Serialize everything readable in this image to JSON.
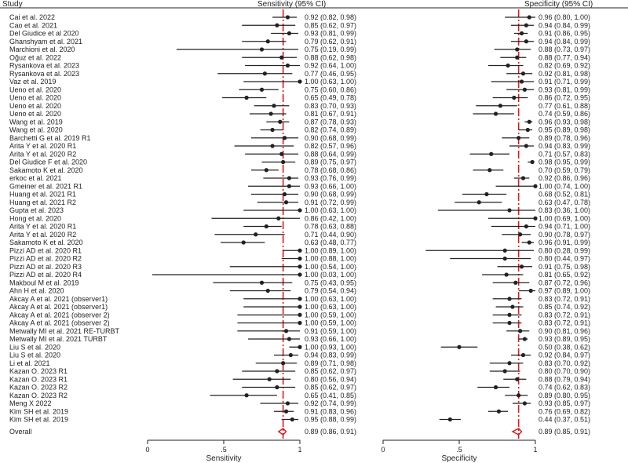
{
  "chart_data": {
    "type": "forest",
    "headers": {
      "study": "Study",
      "sensitivity_ci": "Sensitivity (95% CI)",
      "specificity_ci": "Specificity (95% CI)"
    },
    "axes": {
      "sensitivity": {
        "xlabel": "Sensitivity",
        "xlim": [
          0,
          1
        ],
        "ticks": [
          0,
          0.5,
          1
        ],
        "tick_labels": [
          "0",
          ".5",
          "1"
        ]
      },
      "specificity": {
        "xlabel": "Specificity",
        "xlim": [
          0,
          1
        ],
        "ticks": [
          0,
          0.5,
          1
        ],
        "tick_labels": [
          "0",
          ".5",
          "1"
        ]
      }
    },
    "pooled_line_color": "#dd1b1b",
    "marker_color": "#222222",
    "studies": [
      {
        "name": "Cai et al. 2022",
        "sens": [
          0.92,
          0.82,
          0.98
        ],
        "sens_text": "0.92 (0.82, 0.98)",
        "spec": [
          0.96,
          0.8,
          1.0
        ],
        "spec_text": "0.96 (0.80, 1.00)"
      },
      {
        "name": "Cao et al. 2021",
        "sens": [
          0.85,
          0.62,
          0.97
        ],
        "sens_text": "0.85 (0.62, 0.97)",
        "spec": [
          0.94,
          0.84,
          0.99
        ],
        "spec_text": "0.94 (0.84, 0.99)"
      },
      {
        "name": "Del Giudice et al 2020",
        "sens": [
          0.93,
          0.81,
          0.99
        ],
        "sens_text": "0.93 (0.81, 0.99)",
        "spec": [
          0.91,
          0.86,
          0.95
        ],
        "spec_text": "0.91 (0.86, 0.95)"
      },
      {
        "name": "Ghanshyam et al. 2021",
        "sens": [
          0.79,
          0.62,
          0.91
        ],
        "sens_text": "0.79 (0.62, 0.91)",
        "spec": [
          0.94,
          0.84,
          0.99
        ],
        "spec_text": "0.94 (0.84, 0.99)"
      },
      {
        "name": "Marchioni et al. 2020",
        "sens": [
          0.75,
          0.19,
          0.99
        ],
        "sens_text": "0.75 (0.19, 0.99)",
        "spec": [
          0.88,
          0.73,
          0.97
        ],
        "spec_text": "0.88 (0.73, 0.97)"
      },
      {
        "name": "Oğuz et al. 2022",
        "sens": [
          0.88,
          0.62,
          0.98
        ],
        "sens_text": "0.88 (0.62, 0.98)",
        "spec": [
          0.88,
          0.77,
          0.94
        ],
        "spec_text": "0.88 (0.77, 0.94)"
      },
      {
        "name": "Rysankova et al. 2023",
        "sens": [
          0.92,
          0.64,
          1.0
        ],
        "sens_text": "0.92 (0.64, 1.00)",
        "spec": [
          0.82,
          0.69,
          0.92
        ],
        "spec_text": "0.82 (0.69, 0.92)"
      },
      {
        "name": "Rysankova et al. 2023",
        "sens": [
          0.77,
          0.46,
          0.95
        ],
        "sens_text": "0.77 (0.46, 0.95)",
        "spec": [
          0.92,
          0.81,
          0.98
        ],
        "spec_text": "0.92 (0.81, 0.98)"
      },
      {
        "name": "Vaz et al. 2019",
        "sens": [
          1.0,
          0.63,
          1.0
        ],
        "sens_text": "1.00 (0.63, 1.00)",
        "spec": [
          0.91,
          0.71,
          0.99
        ],
        "spec_text": "0.91 (0.71, 0.99)"
      },
      {
        "name": "Ueno et al. 2020",
        "sens": [
          0.75,
          0.6,
          0.86
        ],
        "sens_text": "0.75 (0.60, 0.86)",
        "spec": [
          0.93,
          0.81,
          0.99
        ],
        "spec_text": "0.93 (0.81, 0.99)"
      },
      {
        "name": "Ueno et al. 2020",
        "sens": [
          0.65,
          0.49,
          0.78
        ],
        "sens_text": "0.65 (0.49, 0.78)",
        "spec": [
          0.86,
          0.72,
          0.95
        ],
        "spec_text": "0.86 (0.72, 0.95)"
      },
      {
        "name": "Ueno et al. 2020",
        "sens": [
          0.83,
          0.7,
          0.93
        ],
        "sens_text": "0.83 (0.70, 0.93)",
        "spec": [
          0.77,
          0.61,
          0.88
        ],
        "spec_text": "0.77 (0.61, 0.88)"
      },
      {
        "name": "Ueno et al. 2020",
        "sens": [
          0.81,
          0.67,
          0.91
        ],
        "sens_text": "0.81 (0.67, 0.91)",
        "spec": [
          0.74,
          0.59,
          0.86
        ],
        "spec_text": "0.74 (0.59, 0.86)"
      },
      {
        "name": "Wang et al. 2019",
        "sens": [
          0.87,
          0.78,
          0.93
        ],
        "sens_text": "0.87 (0.78, 0.93)",
        "spec": [
          0.96,
          0.93,
          0.98
        ],
        "spec_text": "0.96 (0.93, 0.98)"
      },
      {
        "name": "Wang et al. 2020",
        "sens": [
          0.82,
          0.74,
          0.89
        ],
        "sens_text": "0.82 (0.74, 0.89)",
        "spec": [
          0.95,
          0.89,
          0.98
        ],
        "spec_text": "0.95 (0.89, 0.98)"
      },
      {
        "name": "Barchetti G et al. 2019 R1",
        "sens": [
          0.9,
          0.68,
          0.99
        ],
        "sens_text": "0.90 (0.68, 0.99)",
        "spec": [
          0.89,
          0.78,
          0.96
        ],
        "spec_text": "0.89 (0.78, 0.96)"
      },
      {
        "name": "Arita Y et al. 2020 R1",
        "sens": [
          0.82,
          0.57,
          0.96
        ],
        "sens_text": "0.82 (0.57, 0.96)",
        "spec": [
          0.94,
          0.83,
          0.99
        ],
        "spec_text": "0.94 (0.83, 0.99)"
      },
      {
        "name": "Arita Y et al. 2020 R2",
        "sens": [
          0.88,
          0.64,
          0.99
        ],
        "sens_text": "0.88 (0.64, 0.99)",
        "spec": [
          0.71,
          0.57,
          0.83
        ],
        "spec_text": "0.71 (0.57, 0.83)"
      },
      {
        "name": "Del Giudice F et al. 2020",
        "sens": [
          0.89,
          0.75,
          0.97
        ],
        "sens_text": "0.89 (0.75, 0.97)",
        "spec": [
          0.98,
          0.95,
          0.99
        ],
        "spec_text": "0.98 (0.95, 0.99)"
      },
      {
        "name": "Sakamoto K et al. 2020",
        "sens": [
          0.78,
          0.68,
          0.86
        ],
        "sens_text": "0.78 (0.68, 0.86)",
        "spec": [
          0.7,
          0.59,
          0.79
        ],
        "spec_text": "0.70 (0.59, 0.79)"
      },
      {
        "name": "erkoc et al. 2021",
        "sens": [
          0.93,
          0.76,
          0.99
        ],
        "sens_text": "0.93 (0.76, 0.99)",
        "spec": [
          0.92,
          0.86,
          0.96
        ],
        "spec_text": "0.92 (0.86, 0.96)"
      },
      {
        "name": "Gmeiner et al. 2021 R1",
        "sens": [
          0.93,
          0.66,
          1.0
        ],
        "sens_text": "0.93 (0.66, 1.00)",
        "spec": [
          1.0,
          0.74,
          1.0
        ],
        "spec_text": "1.00 (0.74, 1.00)"
      },
      {
        "name": "Huang et al. 2021 R1",
        "sens": [
          0.9,
          0.68,
          0.99
        ],
        "sens_text": "0.90 (0.68, 0.99)",
        "spec": [
          0.68,
          0.52,
          0.81
        ],
        "spec_text": "0.68 (0.52, 0.81)"
      },
      {
        "name": "Huang et al. 2021 R2",
        "sens": [
          0.91,
          0.72,
          0.99
        ],
        "sens_text": "0.91 (0.72, 0.99)",
        "spec": [
          0.63,
          0.47,
          0.78
        ],
        "spec_text": "0.63 (0.47, 0.78)"
      },
      {
        "name": "Gupta et al. 2023",
        "sens": [
          1.0,
          0.63,
          1.0
        ],
        "sens_text": "1.00 (0.63, 1.00)",
        "spec": [
          0.83,
          0.36,
          1.0
        ],
        "spec_text": "0.83 (0.36, 1.00)"
      },
      {
        "name": "Hong et al. 2020",
        "sens": [
          0.86,
          0.42,
          1.0
        ],
        "sens_text": "0.86 (0.42, 1.00)",
        "spec": [
          1.0,
          0.69,
          1.0
        ],
        "spec_text": "1.00 (0.69, 1.00)"
      },
      {
        "name": "Arita Y et al. 2020 R1",
        "sens": [
          0.78,
          0.63,
          0.88
        ],
        "sens_text": "0.78 (0.63, 0.88)",
        "spec": [
          0.94,
          0.71,
          1.0
        ],
        "spec_text": "0.94 (0.71, 1.00)"
      },
      {
        "name": "Arita Y et al. 2020 R2",
        "sens": [
          0.71,
          0.44,
          0.9
        ],
        "sens_text": "0.71 (0.44, 0.90)",
        "spec": [
          0.9,
          0.78,
          0.97
        ],
        "spec_text": "0.90 (0.78, 0.97)"
      },
      {
        "name": "Sakamoto K et al. 2020",
        "sens": [
          0.63,
          0.48,
          0.77
        ],
        "sens_text": "0.63 (0.48, 0.77)",
        "spec": [
          0.96,
          0.91,
          0.99
        ],
        "spec_text": "0.96 (0.91, 0.99)"
      },
      {
        "name": "Pizzi AD et al. 2020 R1",
        "sens": [
          1.0,
          0.89,
          1.0
        ],
        "sens_text": "1.00 (0.89, 1.00)",
        "spec": [
          0.8,
          0.28,
          0.99
        ],
        "spec_text": "0.80 (0.28, 0.99)"
      },
      {
        "name": "Pizzi AD et al. 2020 R2",
        "sens": [
          1.0,
          0.88,
          1.0
        ],
        "sens_text": "1.00 (0.88, 1.00)",
        "spec": [
          0.8,
          0.44,
          0.97
        ],
        "spec_text": "0.80 (0.44, 0.97)"
      },
      {
        "name": "Pizzi AD et al. 2020 R3",
        "sens": [
          1.0,
          0.54,
          1.0
        ],
        "sens_text": "1.00 (0.54, 1.00)",
        "spec": [
          0.91,
          0.75,
          0.98
        ],
        "spec_text": "0.91 (0.75, 0.98)"
      },
      {
        "name": "Pizzi AD et al. 2020 R4",
        "sens": [
          1.0,
          0.03,
          1.0
        ],
        "sens_text": "1.00 (0.03, 1.00)",
        "spec": [
          0.81,
          0.65,
          0.92
        ],
        "spec_text": "0.81 (0.65, 0.92)"
      },
      {
        "name": "Makboul M et al. 2019",
        "sens": [
          0.75,
          0.43,
          0.95
        ],
        "sens_text": "0.75 (0.43, 0.95)",
        "spec": [
          0.87,
          0.72,
          0.96
        ],
        "spec_text": "0.87 (0.72, 0.96)"
      },
      {
        "name": "Ahn H et al. 2020",
        "sens": [
          0.79,
          0.54,
          0.94
        ],
        "sens_text": "0.79 (0.54, 0.94)",
        "spec": [
          0.97,
          0.89,
          1.0
        ],
        "spec_text": "0.97 (0.89, 1.00)"
      },
      {
        "name": "Akcay A et al. 2021 (observer1)",
        "sens": [
          1.0,
          0.63,
          1.0
        ],
        "sens_text": "1.00 (0.63, 1.00)",
        "spec": [
          0.83,
          0.72,
          0.91
        ],
        "spec_text": "0.83 (0.72, 0.91)"
      },
      {
        "name": "Akcay A et al. 2021 (observer1)",
        "sens": [
          1.0,
          0.63,
          1.0
        ],
        "sens_text": "1.00 (0.63, 1.00)",
        "spec": [
          0.85,
          0.74,
          0.92
        ],
        "spec_text": "0.85 (0.74, 0.92)"
      },
      {
        "name": "Akcay A et al. 2021 (observer 2)",
        "sens": [
          1.0,
          0.59,
          1.0
        ],
        "sens_text": "1.00 (0.59, 1.00)",
        "spec": [
          0.83,
          0.72,
          0.91
        ],
        "spec_text": "0.83 (0.72, 0.91)"
      },
      {
        "name": "Akcay A et al. 2021 (observer 2)",
        "sens": [
          1.0,
          0.59,
          1.0
        ],
        "sens_text": "1.00 (0.59, 1.00)",
        "spec": [
          0.83,
          0.72,
          0.91
        ],
        "spec_text": "0.83 (0.72, 0.91)"
      },
      {
        "name": "Metwally MI et al. 2021 RE-TURBT",
        "sens": [
          0.91,
          0.59,
          1.0
        ],
        "sens_text": "0.91 (0.59, 1.00)",
        "spec": [
          0.9,
          0.81,
          0.96
        ],
        "spec_text": "0.90 (0.81, 0.96)"
      },
      {
        "name": "Metwally MI et al. 2021 TURBT",
        "sens": [
          0.93,
          0.66,
          1.0
        ],
        "sens_text": "0.93 (0.66, 1.00)",
        "spec": [
          0.93,
          0.89,
          0.95
        ],
        "spec_text": "0.93 (0.89, 0.95)"
      },
      {
        "name": "Liu S et al. 2020",
        "sens": [
          1.0,
          0.93,
          1.0
        ],
        "sens_text": "1.00 (0.93, 1.00)",
        "spec": [
          0.5,
          0.38,
          0.62
        ],
        "spec_text": "0.50 (0.38, 0.62)"
      },
      {
        "name": "Liu S et al. 2020",
        "sens": [
          0.94,
          0.83,
          0.99
        ],
        "sens_text": "0.94 (0.83, 0.99)",
        "spec": [
          0.92,
          0.84,
          0.97
        ],
        "spec_text": "0.92 (0.84, 0.97)"
      },
      {
        "name": "Li et al. 2021",
        "sens": [
          0.89,
          0.71,
          0.98
        ],
        "sens_text": "0.89 (0.71, 0.98)",
        "spec": [
          0.83,
          0.7,
          0.92
        ],
        "spec_text": "0.83 (0.70, 0.92)"
      },
      {
        "name": "Kazan O. 2023 R1",
        "sens": [
          0.85,
          0.62,
          0.97
        ],
        "sens_text": "0.85 (0.62, 0.97)",
        "spec": [
          0.8,
          0.7,
          0.9
        ],
        "spec_text": "0.80 (0.70, 0.90)"
      },
      {
        "name": "Kazan O. 2023 R1",
        "sens": [
          0.8,
          0.56,
          0.94
        ],
        "sens_text": "0.80 (0.56, 0.94)",
        "spec": [
          0.88,
          0.79,
          0.94
        ],
        "spec_text": "0.88 (0.79, 0.94)"
      },
      {
        "name": "Kazan O. 2023 R2",
        "sens": [
          0.85,
          0.62,
          0.97
        ],
        "sens_text": "0.85 (0.62, 0.97)",
        "spec": [
          0.74,
          0.62,
          0.83
        ],
        "spec_text": "0.74 (0.62, 0.83)"
      },
      {
        "name": "Kazan O. 2023 R2",
        "sens": [
          0.65,
          0.41,
          0.85
        ],
        "sens_text": "0.65 (0.41, 0.85)",
        "spec": [
          0.89,
          0.8,
          0.95
        ],
        "spec_text": "0.89 (0.80, 0.95)"
      },
      {
        "name": "Meng X 2022",
        "sens": [
          0.92,
          0.74,
          0.99
        ],
        "sens_text": "0.92 (0.74, 0.99)",
        "spec": [
          0.93,
          0.85,
          0.97
        ],
        "spec_text": "0.93 (0.85, 0.97)"
      },
      {
        "name": "Kim SH et al. 2019",
        "sens": [
          0.91,
          0.83,
          0.96
        ],
        "sens_text": "0.91 (0.83, 0.96)",
        "spec": [
          0.76,
          0.69,
          0.82
        ],
        "spec_text": "0.76 (0.69, 0.82)"
      },
      {
        "name": "Kim SH et al. 2019",
        "sens": [
          0.95,
          0.88,
          0.99
        ],
        "sens_text": "0.95 (0.88, 0.99)",
        "spec": [
          0.44,
          0.37,
          0.51
        ],
        "spec_text": "0.44 (0.37, 0.51)"
      }
    ],
    "overall": {
      "name": "Overall",
      "sens": [
        0.89,
        0.86,
        0.91
      ],
      "sens_text": "0.89 (0.86, 0.91)",
      "spec": [
        0.89,
        0.85,
        0.91
      ],
      "spec_text": "0.89 (0.85, 0.91)"
    }
  }
}
